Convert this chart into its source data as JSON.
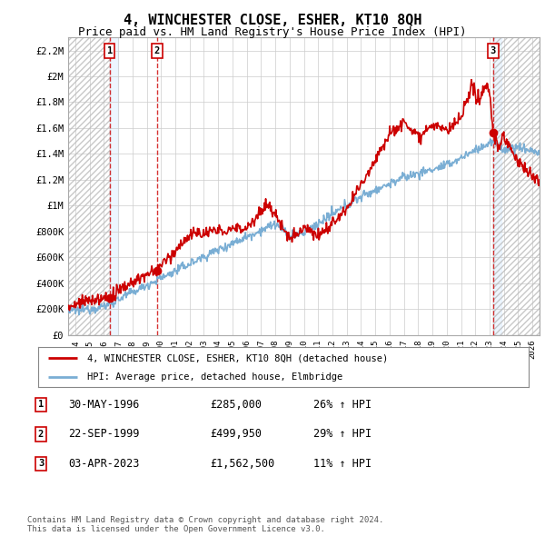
{
  "title": "4, WINCHESTER CLOSE, ESHER, KT10 8QH",
  "subtitle": "Price paid vs. HM Land Registry's House Price Index (HPI)",
  "title_fontsize": 11,
  "subtitle_fontsize": 9,
  "xlim": [
    1993.5,
    2026.5
  ],
  "ylim": [
    0,
    2300000
  ],
  "yticks": [
    0,
    200000,
    400000,
    600000,
    800000,
    1000000,
    1200000,
    1400000,
    1600000,
    1800000,
    2000000,
    2200000
  ],
  "ytick_labels": [
    "£0",
    "£200K",
    "£400K",
    "£600K",
    "£800K",
    "£1M",
    "£1.2M",
    "£1.4M",
    "£1.6M",
    "£1.8M",
    "£2M",
    "£2.2M"
  ],
  "xticks": [
    1994,
    1995,
    1996,
    1997,
    1998,
    1999,
    2000,
    2001,
    2002,
    2003,
    2004,
    2005,
    2006,
    2007,
    2008,
    2009,
    2010,
    2011,
    2012,
    2013,
    2014,
    2015,
    2016,
    2017,
    2018,
    2019,
    2020,
    2021,
    2022,
    2023,
    2024,
    2025,
    2026
  ],
  "sale_dates": [
    1996.41,
    1999.72,
    2023.25
  ],
  "sale_prices": [
    285000,
    499950,
    1562500
  ],
  "sale_labels": [
    "1",
    "2",
    "3"
  ],
  "legend_line1": "4, WINCHESTER CLOSE, ESHER, KT10 8QH (detached house)",
  "legend_line2": "HPI: Average price, detached house, Elmbridge",
  "table_data": [
    [
      "1",
      "30-MAY-1996",
      "£285,000",
      "26% ↑ HPI"
    ],
    [
      "2",
      "22-SEP-1999",
      "£499,950",
      "29% ↑ HPI"
    ],
    [
      "3",
      "03-APR-2023",
      "£1,562,500",
      "11% ↑ HPI"
    ]
  ],
  "footnote": "Contains HM Land Registry data © Crown copyright and database right 2024.\nThis data is licensed under the Open Government Licence v3.0.",
  "red_color": "#cc0000",
  "blue_color": "#7aaed4",
  "hatch_region_left_end": 1996.41,
  "hatch_region_right_start": 2023.25
}
